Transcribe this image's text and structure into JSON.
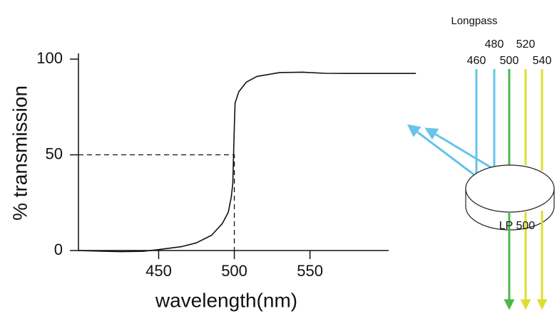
{
  "chart_data": {
    "type": "line",
    "xlabel": "wavelength(nm)",
    "ylabel": "% transmission",
    "x": [
      397,
      410,
      425,
      440,
      450,
      465,
      475,
      485,
      492,
      496,
      498,
      499,
      499.5,
      500,
      500.5,
      503,
      508,
      515,
      530,
      545,
      560,
      575,
      590,
      605,
      620
    ],
    "values": [
      0,
      -0.3,
      -0.6,
      -0.4,
      0.5,
      2,
      4,
      8,
      14,
      20,
      28,
      35,
      50,
      65,
      77,
      83,
      88,
      91,
      93,
      93.2,
      92.6,
      92.5,
      92.5,
      92.5,
      92.5
    ],
    "color": "#111111",
    "xlim": [
      397,
      602
    ],
    "ylim": [
      0,
      103
    ],
    "xticks": [
      450,
      500,
      550
    ],
    "yticks": [
      0,
      50,
      100
    ],
    "crosshair": [
      500,
      50
    ]
  },
  "filter": {
    "title": "Longpass",
    "wavelengths": [
      "460",
      "480",
      "500",
      "520",
      "540"
    ],
    "label": "LP 500"
  }
}
